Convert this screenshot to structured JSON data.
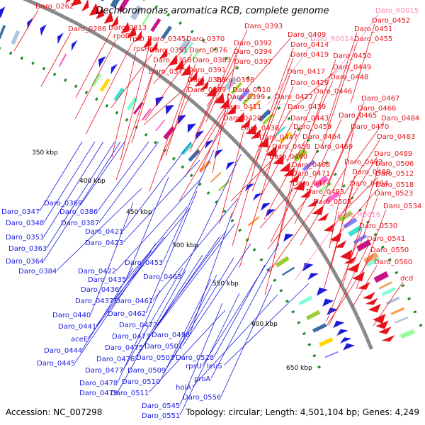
{
  "title": "Dechloromonas aromatica RCB, complete genome",
  "accession": "Accession: NC_007298",
  "summary": "Topology: circular; Length: 4,501,104 bp; Genes: 4,249",
  "colors": {
    "forward": "#e8121a",
    "reverse": "#1b1be0",
    "rna": "#ff88bb",
    "backbone": "#8a8a8a",
    "tick": "#1e8a1e"
  },
  "kbp_ticks": [
    "350 kbp",
    "400 kbp",
    "450 kbp",
    "500 kbp",
    "550 kbp",
    "600 kbp",
    "650 kbp"
  ],
  "forward_labels": [
    "Daro_0262",
    "Daro_0286",
    "Daro_0313",
    "rpoB",
    "rplD",
    "rpsH",
    "Daro_0345",
    "Daro_0370",
    "Daro_0351",
    "Daro_0376",
    "Daro_0358",
    "Daro_0383",
    "Daro_0371",
    "Daro_0391",
    "Daro_0385",
    "Daro_0398",
    "Daro_0389",
    "Daro_0410",
    "Daro_0393",
    "Daro_0392",
    "Daro_0394",
    "Daro_0397",
    "Daro_0399",
    "Daro_0411",
    "Daro_0420",
    "Daro_0438",
    "Daro_0447",
    "Daro_0458",
    "Daro_0460",
    "Daro_0409",
    "Daro_0414",
    "Daro_0419",
    "Daro_0417",
    "Daro_0429",
    "Daro_0427",
    "Daro_0439",
    "Daro_0443",
    "Daro_0459",
    "Daro_0464",
    "Daro_0469",
    "Daro_0468",
    "Daro_0471",
    "Daro_0474",
    "Daro_0493",
    "Daro_0505",
    "Daro_0452",
    "Daro_0451",
    "Daro_0455",
    "Daro_0450",
    "Daro_0449",
    "Daro_0448",
    "Daro_0446",
    "Daro_0467",
    "Daro_0466",
    "Daro_0465",
    "Daro_0470",
    "Daro_0484",
    "Daro_0483",
    "Daro_0489",
    "Daro_0482",
    "Daro_0488",
    "Daro_0494",
    "Daro_0506",
    "Daro_0512",
    "Daro_0518",
    "Daro_0523",
    "Daro_0534",
    "Daro_0530",
    "Daro_0541",
    "Daro_0550",
    "Daro_0560",
    "dcd"
  ],
  "rna_labels": [
    "Daro_R0015",
    "Daro_R0014",
    "Daro_R0016"
  ],
  "reverse_labels": [
    "Daro_0347",
    "Daro_0348",
    "Daro_0353",
    "Daro_0363",
    "Daro_0364",
    "Daro_0384",
    "Daro_0369",
    "Daro_0386",
    "Daro_0387",
    "Daro_0421",
    "Daro_0423",
    "Daro_0422",
    "Daro_0435",
    "Daro_0453",
    "Daro_0463",
    "Daro_0436",
    "Daro_0437",
    "Daro_0461",
    "Daro_0440",
    "Daro_0462",
    "Daro_0441",
    "Daro_0472",
    "aceE",
    "Daro_0473",
    "Daro_0498",
    "Daro_0444",
    "Daro_0475",
    "Daro_0501",
    "Daro_0445",
    "Daro_0476",
    "Daro_0503",
    "Daro_0528",
    "Daro_0477",
    "Daro_0509",
    "rpsU",
    "leuS",
    "Daro_0478",
    "Daro_0510",
    "proA",
    "Daro_0479",
    "Daro_0511",
    "holA",
    "Daro_0545",
    "Daro_0556",
    "Daro_0551"
  ]
}
